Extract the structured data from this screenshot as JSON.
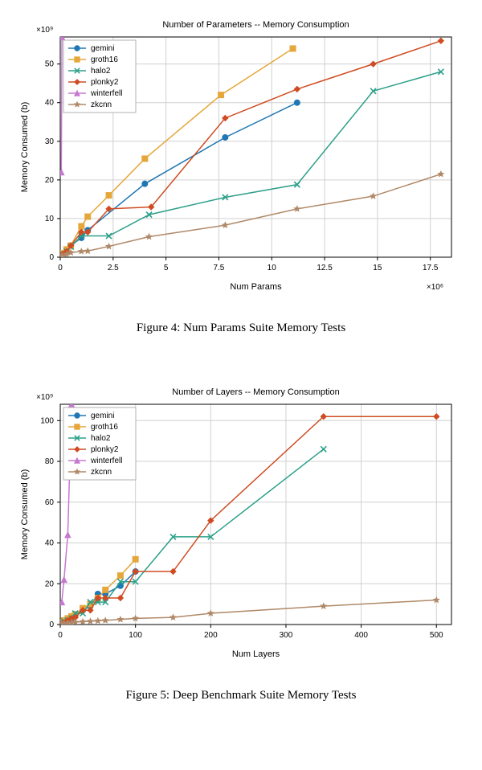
{
  "figures": [
    {
      "id": "fig4",
      "chart": {
        "type": "line",
        "title": "Number of Parameters -- Memory Consumption",
        "xlabel": "Num Params",
        "ylabel": "Memory Consumed (b)",
        "x_scale_label": "×10⁶",
        "y_scale_label": "×10⁹",
        "xlim": [
          0,
          18.5
        ],
        "ylim": [
          0,
          57
        ],
        "xtick_step": 2.5,
        "ytick_step": 10,
        "grid_color": "#d0d0d0",
        "background_color": "#ffffff",
        "series": [
          {
            "name": "gemini",
            "color": "#1f77b4",
            "marker": "circle",
            "data": [
              [
                0.05,
                0.5
              ],
              [
                0.1,
                1
              ],
              [
                0.3,
                2
              ],
              [
                0.5,
                3
              ],
              [
                1.0,
                5
              ],
              [
                1.3,
                7
              ],
              [
                4.0,
                19
              ],
              [
                7.8,
                31
              ],
              [
                11.2,
                40
              ]
            ]
          },
          {
            "name": "groth16",
            "color": "#e5a73b",
            "marker": "square",
            "data": [
              [
                0.05,
                0.5
              ],
              [
                0.1,
                1
              ],
              [
                0.3,
                2
              ],
              [
                0.5,
                3
              ],
              [
                1.0,
                8
              ],
              [
                1.3,
                10.5
              ],
              [
                2.3,
                16
              ],
              [
                4.0,
                25.5
              ],
              [
                7.6,
                42
              ],
              [
                11.0,
                54
              ]
            ]
          },
          {
            "name": "halo2",
            "color": "#2ca089",
            "marker": "x",
            "data": [
              [
                0.05,
                0.5
              ],
              [
                0.1,
                0.8
              ],
              [
                0.3,
                1.5
              ],
              [
                0.5,
                2.7
              ],
              [
                1.0,
                5.5
              ],
              [
                2.3,
                5.5
              ],
              [
                4.2,
                11
              ],
              [
                7.8,
                15.5
              ],
              [
                11.2,
                18.8
              ],
              [
                14.8,
                43
              ],
              [
                18.0,
                48
              ]
            ]
          },
          {
            "name": "plonky2",
            "color": "#cf4c22",
            "marker": "diamond",
            "data": [
              [
                0.05,
                0.3
              ],
              [
                0.1,
                0.8
              ],
              [
                0.3,
                1.5
              ],
              [
                0.5,
                3
              ],
              [
                1.0,
                6.5
              ],
              [
                1.3,
                6.5
              ],
              [
                2.3,
                12.5
              ],
              [
                4.3,
                13
              ],
              [
                7.8,
                36
              ],
              [
                11.2,
                43.5
              ],
              [
                14.8,
                50
              ],
              [
                18.0,
                56
              ]
            ]
          },
          {
            "name": "winterfell",
            "color": "#c678d0",
            "marker": "triangle",
            "data": [
              [
                0.05,
                22
              ],
              [
                0.08,
                57
              ]
            ]
          },
          {
            "name": "zkcnn",
            "color": "#b08968",
            "marker": "star",
            "data": [
              [
                0.05,
                0.2
              ],
              [
                0.1,
                0.4
              ],
              [
                0.3,
                0.8
              ],
              [
                0.5,
                1.2
              ],
              [
                1.0,
                1.5
              ],
              [
                1.3,
                1.6
              ],
              [
                2.3,
                2.8
              ],
              [
                4.2,
                5.3
              ],
              [
                7.8,
                8.3
              ],
              [
                11.2,
                12.5
              ],
              [
                14.8,
                15.8
              ],
              [
                18.0,
                21.5
              ]
            ]
          }
        ],
        "legend": {
          "items": [
            "gemini",
            "groth16",
            "halo2",
            "plonky2",
            "winterfell",
            "zkcnn"
          ]
        }
      },
      "caption": "Figure 4: Num Params Suite Memory Tests"
    },
    {
      "id": "fig5",
      "chart": {
        "type": "line",
        "title": "Number of Layers -- Memory Consumption",
        "xlabel": "Num Layers",
        "ylabel": "Memory Consumed (b)",
        "x_scale_label": "",
        "y_scale_label": "×10⁹",
        "xlim": [
          0,
          520
        ],
        "ylim": [
          0,
          108
        ],
        "xtick_step": 100,
        "ytick_step": 20,
        "grid_color": "#d0d0d0",
        "background_color": "#ffffff",
        "series": [
          {
            "name": "gemini",
            "color": "#1f77b4",
            "marker": "circle",
            "data": [
              [
                2,
                1
              ],
              [
                5,
                2
              ],
              [
                10,
                3
              ],
              [
                15,
                4
              ],
              [
                20,
                5
              ],
              [
                30,
                7
              ],
              [
                40,
                9
              ],
              [
                50,
                15
              ],
              [
                60,
                15
              ],
              [
                80,
                19
              ],
              [
                100,
                26
              ]
            ]
          },
          {
            "name": "groth16",
            "color": "#e5a73b",
            "marker": "square",
            "data": [
              [
                2,
                1
              ],
              [
                5,
                2
              ],
              [
                10,
                3
              ],
              [
                15,
                4
              ],
              [
                20,
                5
              ],
              [
                30,
                8
              ],
              [
                40,
                10
              ],
              [
                50,
                13
              ],
              [
                60,
                17
              ],
              [
                80,
                24
              ],
              [
                100,
                32
              ]
            ]
          },
          {
            "name": "halo2",
            "color": "#2ca089",
            "marker": "x",
            "data": [
              [
                2,
                1
              ],
              [
                5,
                1.5
              ],
              [
                10,
                2
              ],
              [
                15,
                3
              ],
              [
                20,
                5.5
              ],
              [
                30,
                5.5
              ],
              [
                40,
                11
              ],
              [
                50,
                11
              ],
              [
                60,
                11
              ],
              [
                80,
                21
              ],
              [
                100,
                21
              ],
              [
                150,
                43
              ],
              [
                200,
                43
              ],
              [
                350,
                86
              ]
            ]
          },
          {
            "name": "plonky2",
            "color": "#cf4c22",
            "marker": "diamond",
            "data": [
              [
                2,
                0.5
              ],
              [
                5,
                1
              ],
              [
                10,
                2
              ],
              [
                15,
                3
              ],
              [
                20,
                3.5
              ],
              [
                30,
                7
              ],
              [
                40,
                7
              ],
              [
                50,
                13
              ],
              [
                60,
                13
              ],
              [
                80,
                13
              ],
              [
                100,
                26
              ],
              [
                150,
                26
              ],
              [
                200,
                51
              ],
              [
                350,
                102
              ],
              [
                500,
                102
              ]
            ]
          },
          {
            "name": "winterfell",
            "color": "#c678d0",
            "marker": "triangle",
            "data": [
              [
                2,
                11
              ],
              [
                5,
                22
              ],
              [
                10,
                44
              ],
              [
                15,
                108
              ]
            ]
          },
          {
            "name": "zkcnn",
            "color": "#b08968",
            "marker": "star",
            "data": [
              [
                2,
                0.3
              ],
              [
                5,
                0.5
              ],
              [
                10,
                0.8
              ],
              [
                15,
                1
              ],
              [
                20,
                1.2
              ],
              [
                30,
                1.4
              ],
              [
                40,
                1.6
              ],
              [
                50,
                1.8
              ],
              [
                60,
                2
              ],
              [
                80,
                2.5
              ],
              [
                100,
                3
              ],
              [
                150,
                3.5
              ],
              [
                200,
                5.5
              ],
              [
                350,
                9
              ],
              [
                500,
                12
              ]
            ]
          }
        ],
        "legend": {
          "items": [
            "gemini",
            "groth16",
            "halo2",
            "plonky2",
            "winterfell",
            "zkcnn"
          ]
        }
      },
      "caption": "Figure 5: Deep Benchmark Suite Memory Tests"
    }
  ]
}
